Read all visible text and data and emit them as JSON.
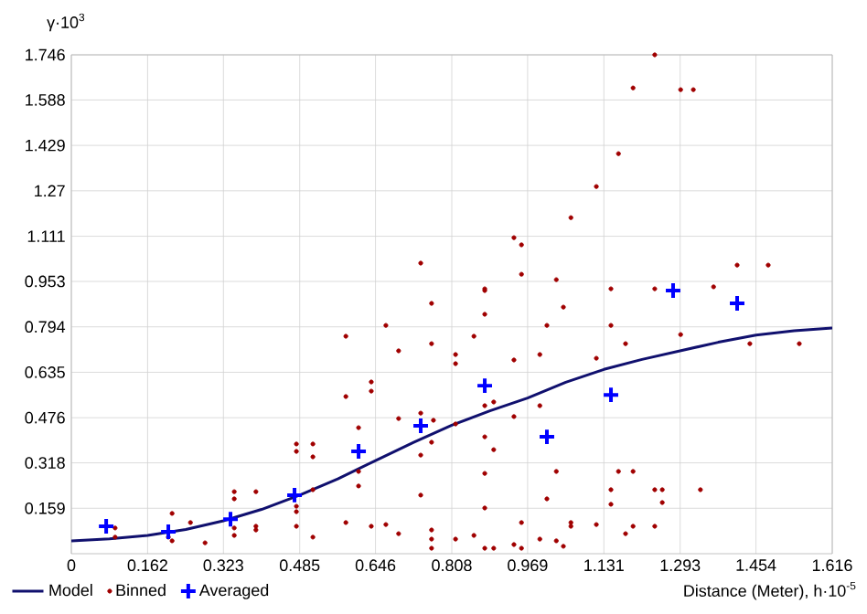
{
  "chart_data": {
    "type": "scatter",
    "xlabel": "Distance (Meter), h·10$^{-5}$",
    "ylabel": "γ·10$^{3}$",
    "xlim": [
      0,
      1.616
    ],
    "ylim": [
      0,
      1.746
    ],
    "xticks": [
      0,
      0.162,
      0.323,
      0.485,
      0.646,
      0.808,
      0.969,
      1.131,
      1.293,
      1.454,
      1.616
    ],
    "yticks": [
      0.159,
      0.318,
      0.476,
      0.635,
      0.794,
      0.953,
      1.111,
      1.27,
      1.429,
      1.588,
      1.746
    ],
    "grid": true,
    "legend": "bottom left",
    "series": [
      {
        "name": "Model",
        "type": "line",
        "color": "#10106e",
        "marker": "none",
        "x": [
          0,
          0.081,
          0.162,
          0.243,
          0.323,
          0.404,
          0.485,
          0.566,
          0.646,
          0.727,
          0.808,
          0.889,
          0.969,
          1.05,
          1.131,
          1.212,
          1.293,
          1.374,
          1.454,
          1.535,
          1.616
        ],
        "values": [
          0.045,
          0.052,
          0.064,
          0.085,
          0.115,
          0.155,
          0.205,
          0.262,
          0.326,
          0.39,
          0.45,
          0.5,
          0.545,
          0.6,
          0.645,
          0.68,
          0.71,
          0.74,
          0.765,
          0.78,
          0.79
        ]
      },
      {
        "name": "Binned",
        "color": "#a00000",
        "marker": "circle",
        "x": [
          0.093,
          0.093,
          0.214,
          0.206,
          0.214,
          0.253,
          0.284,
          0.346,
          0.346,
          0.346,
          0.346,
          0.392,
          0.392,
          0.392,
          0.478,
          0.478,
          0.478,
          0.478,
          0.478,
          0.513,
          0.513,
          0.513,
          0.513,
          0.583,
          0.583,
          0.583,
          0.61,
          0.61,
          0.61,
          0.637,
          0.637,
          0.637,
          0.668,
          0.668,
          0.695,
          0.695,
          0.695,
          0.742,
          0.742,
          0.742,
          0.765,
          0.765,
          0.765,
          0.765,
          0.765,
          0.765,
          0.769,
          0.742,
          0.878,
          0.878,
          0.94,
          0.956,
          0.956,
          1.03,
          1.045,
          1.061,
          1.115,
          1.146,
          1.162,
          1.193,
          1.239,
          1.239,
          1.294,
          1.321,
          1.364,
          1.414,
          1.48,
          0.878,
          1.01,
          1.146,
          0.855,
          1.177,
          1.294,
          1.441,
          1.546,
          0.816,
          0.816,
          0.94,
          0.995,
          1.115,
          0.878,
          0.897,
          0.995,
          0.94,
          0.816,
          0.878,
          0.897,
          1.03,
          1.162,
          1.193,
          0.878,
          1.146,
          1.239,
          1.255,
          1.336,
          1.01,
          1.146,
          1.255,
          0.878,
          0.956,
          1.061,
          1.061,
          1.115,
          1.193,
          1.177,
          1.239,
          0.816,
          0.855,
          0.995,
          1.03,
          0.878,
          0.897,
          0.94,
          0.956,
          1.045
        ],
        "values": [
          0.09,
          0.058,
          0.141,
          0.058,
          0.045,
          0.109,
          0.038,
          0.217,
          0.192,
          0.09,
          0.064,
          0.217,
          0.096,
          0.083,
          0.384,
          0.358,
          0.166,
          0.147,
          0.096,
          0.384,
          0.339,
          0.224,
          0.058,
          0.761,
          0.55,
          0.109,
          0.441,
          0.288,
          0.237,
          0.601,
          0.569,
          0.096,
          0.799,
          0.102,
          0.71,
          0.473,
          0.07,
          0.492,
          0.345,
          0.205,
          0.876,
          0.735,
          0.39,
          0.083,
          0.051,
          0.019,
          0.467,
          1.017,
          0.927,
          0.921,
          1.106,
          1.081,
          0.978,
          0.959,
          0.863,
          1.176,
          1.285,
          0.927,
          1.4,
          1.63,
          1.746,
          0.927,
          1.624,
          1.624,
          0.934,
          1.01,
          1.01,
          0.838,
          0.799,
          0.799,
          0.761,
          0.735,
          0.767,
          0.735,
          0.735,
          0.697,
          0.665,
          0.678,
          0.697,
          0.684,
          0.518,
          0.531,
          0.518,
          0.48,
          0.454,
          0.409,
          0.364,
          0.288,
          0.288,
          0.288,
          0.281,
          0.224,
          0.224,
          0.224,
          0.224,
          0.192,
          0.173,
          0.179,
          0.16,
          0.109,
          0.109,
          0.096,
          0.102,
          0.096,
          0.07,
          0.096,
          0.051,
          0.064,
          0.051,
          0.045,
          0.019,
          0.019,
          0.032,
          0.019,
          0.026
        ]
      },
      {
        "name": "Averaged",
        "color": "#0000ff",
        "marker": "cross",
        "x": [
          0.074,
          0.206,
          0.338,
          0.474,
          0.61,
          0.742,
          0.878,
          1.01,
          1.146,
          1.278,
          1.414
        ],
        "values": [
          0.096,
          0.077,
          0.121,
          0.205,
          0.358,
          0.448,
          0.588,
          0.409,
          0.556,
          0.921,
          0.876
        ]
      }
    ]
  }
}
